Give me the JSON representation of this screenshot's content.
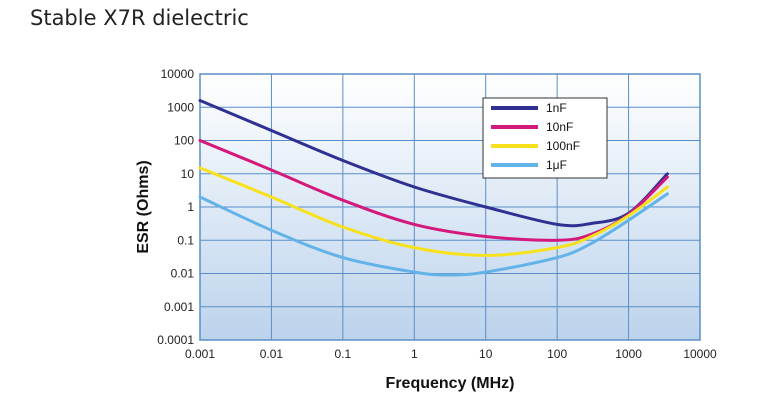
{
  "page_title": "Stable X7R dielectric",
  "chart_data": {
    "type": "line",
    "xlabel": "Frequency (MHz)",
    "ylabel": "ESR (Ohms)",
    "xscale": "log",
    "yscale": "log",
    "xlim": [
      0.001,
      10000
    ],
    "ylim": [
      0.0001,
      10000
    ],
    "x_ticks": [
      "0.001",
      "0.01",
      "0.1",
      "1",
      "10",
      "100",
      "1000",
      "10000"
    ],
    "y_ticks": [
      "0.0001",
      "0.001",
      "0.01",
      "0.1",
      "1",
      "10",
      "100",
      "1000",
      "10000"
    ],
    "grid": true,
    "legend_position": "top-right",
    "series": [
      {
        "name": "1nF",
        "color": "#2e3192",
        "x": [
          0.001,
          0.01,
          0.1,
          1,
          10,
          100,
          300,
          1000,
          3500
        ],
        "y": [
          1600,
          200,
          25,
          4,
          1,
          0.3,
          0.32,
          0.65,
          10
        ]
      },
      {
        "name": "10nF",
        "color": "#d4197c",
        "x": [
          0.001,
          0.01,
          0.1,
          1,
          10,
          100,
          300,
          1000,
          3500
        ],
        "y": [
          100,
          13,
          1.6,
          0.3,
          0.13,
          0.1,
          0.15,
          0.6,
          8
        ]
      },
      {
        "name": "100nF",
        "color": "#f7e11d",
        "x": [
          0.001,
          0.01,
          0.1,
          1,
          10,
          100,
          300,
          1000,
          3500
        ],
        "y": [
          15,
          2,
          0.25,
          0.06,
          0.035,
          0.06,
          0.13,
          0.55,
          4
        ]
      },
      {
        "name": "1μF",
        "color": "#63b3e8",
        "x": [
          0.001,
          0.01,
          0.1,
          1,
          3,
          10,
          100,
          300,
          1000,
          3500
        ],
        "y": [
          2,
          0.2,
          0.03,
          0.011,
          0.009,
          0.011,
          0.03,
          0.08,
          0.4,
          2.5
        ]
      }
    ]
  }
}
